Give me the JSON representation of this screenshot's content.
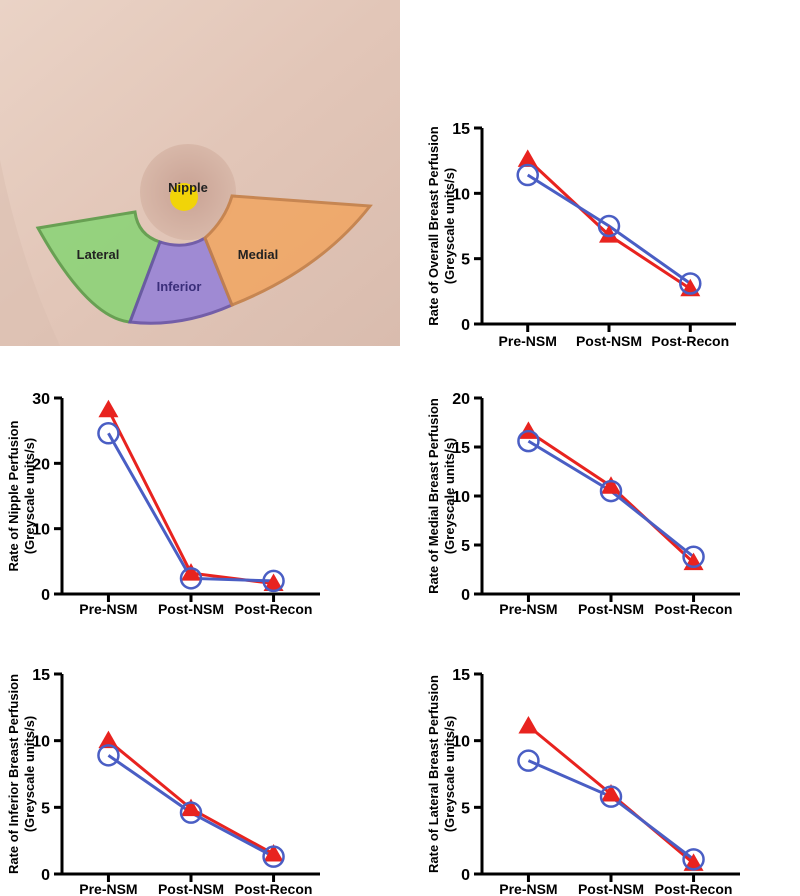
{
  "photo": {
    "regions": [
      {
        "key": "nipple",
        "label": "Nipple",
        "color": "#f2d600"
      },
      {
        "key": "lateral",
        "label": "Lateral",
        "color": "#8fd37a"
      },
      {
        "key": "inferior",
        "label": "Inferior",
        "color": "#9a86d6"
      },
      {
        "key": "medial",
        "label": "Medial",
        "color": "#f0a868"
      }
    ]
  },
  "colors": {
    "red_series": "#e8231f",
    "blue_series": "#4a5ec4"
  },
  "chart_data": [
    {
      "id": "overall",
      "type": "line",
      "title": "",
      "ylabel_line1": "Rate of Overall  Breast Perfusion",
      "ylabel_line2": "(Greyscale units/s)",
      "categories": [
        "Pre-NSM",
        "Post-NSM",
        "Post-Recon"
      ],
      "ylim": [
        0,
        15
      ],
      "yticks": [
        0,
        5,
        10,
        15
      ],
      "series": [
        {
          "name": "red-triangle",
          "marker": "triangle",
          "color": "#e8231f",
          "values": [
            12.6,
            6.8,
            2.7
          ]
        },
        {
          "name": "blue-circle",
          "marker": "circle",
          "color": "#4a5ec4",
          "values": [
            11.4,
            7.5,
            3.1
          ]
        }
      ]
    },
    {
      "id": "nipple",
      "type": "line",
      "title": "",
      "ylabel_line1": "Rate of Nipple Perfusion",
      "ylabel_line2": "(Greyscale units/s)",
      "categories": [
        "Pre-NSM",
        "Post-NSM",
        "Post-Recon"
      ],
      "ylim": [
        0,
        30
      ],
      "yticks": [
        0,
        10,
        20,
        30
      ],
      "series": [
        {
          "name": "red-triangle",
          "marker": "triangle",
          "color": "#e8231f",
          "values": [
            28.2,
            3.2,
            1.6
          ]
        },
        {
          "name": "blue-circle",
          "marker": "circle",
          "color": "#4a5ec4",
          "values": [
            24.6,
            2.4,
            2.0
          ]
        }
      ]
    },
    {
      "id": "medial",
      "type": "line",
      "title": "",
      "ylabel_line1": "Rate of Medial Breast Perfusion",
      "ylabel_line2": "(Greyscale units/s)",
      "categories": [
        "Pre-NSM",
        "Post-NSM",
        "Post-Recon"
      ],
      "ylim": [
        0,
        20
      ],
      "yticks": [
        0,
        5,
        10,
        15,
        20
      ],
      "series": [
        {
          "name": "red-triangle",
          "marker": "triangle",
          "color": "#e8231f",
          "values": [
            16.6,
            11.0,
            3.2
          ]
        },
        {
          "name": "blue-circle",
          "marker": "circle",
          "color": "#4a5ec4",
          "values": [
            15.6,
            10.5,
            3.8
          ]
        }
      ]
    },
    {
      "id": "inferior",
      "type": "line",
      "title": "",
      "ylabel_line1": "Rate of Inferior Breast Perfusion",
      "ylabel_line2": "(Greyscale units/s)",
      "categories": [
        "Pre-NSM",
        "Post-NSM",
        "Post-Recon"
      ],
      "ylim": [
        0,
        15
      ],
      "yticks": [
        0,
        5,
        10,
        15
      ],
      "series": [
        {
          "name": "red-triangle",
          "marker": "triangle",
          "color": "#e8231f",
          "values": [
            10.0,
            4.9,
            1.5
          ]
        },
        {
          "name": "blue-circle",
          "marker": "circle",
          "color": "#4a5ec4",
          "values": [
            8.9,
            4.6,
            1.3
          ]
        }
      ]
    },
    {
      "id": "lateral",
      "type": "line",
      "title": "",
      "ylabel_line1": "Rate of Lateral Breast Perfusion",
      "ylabel_line2": "(Greyscale units/s)",
      "categories": [
        "Pre-NSM",
        "Post-NSM",
        "Post-Recon"
      ],
      "ylim": [
        0,
        15
      ],
      "yticks": [
        0,
        5,
        10,
        15
      ],
      "series": [
        {
          "name": "red-triangle",
          "marker": "triangle",
          "color": "#e8231f",
          "values": [
            11.1,
            6.0,
            0.8
          ]
        },
        {
          "name": "blue-circle",
          "marker": "circle",
          "color": "#4a5ec4",
          "values": [
            8.5,
            5.8,
            1.1
          ]
        }
      ]
    }
  ]
}
